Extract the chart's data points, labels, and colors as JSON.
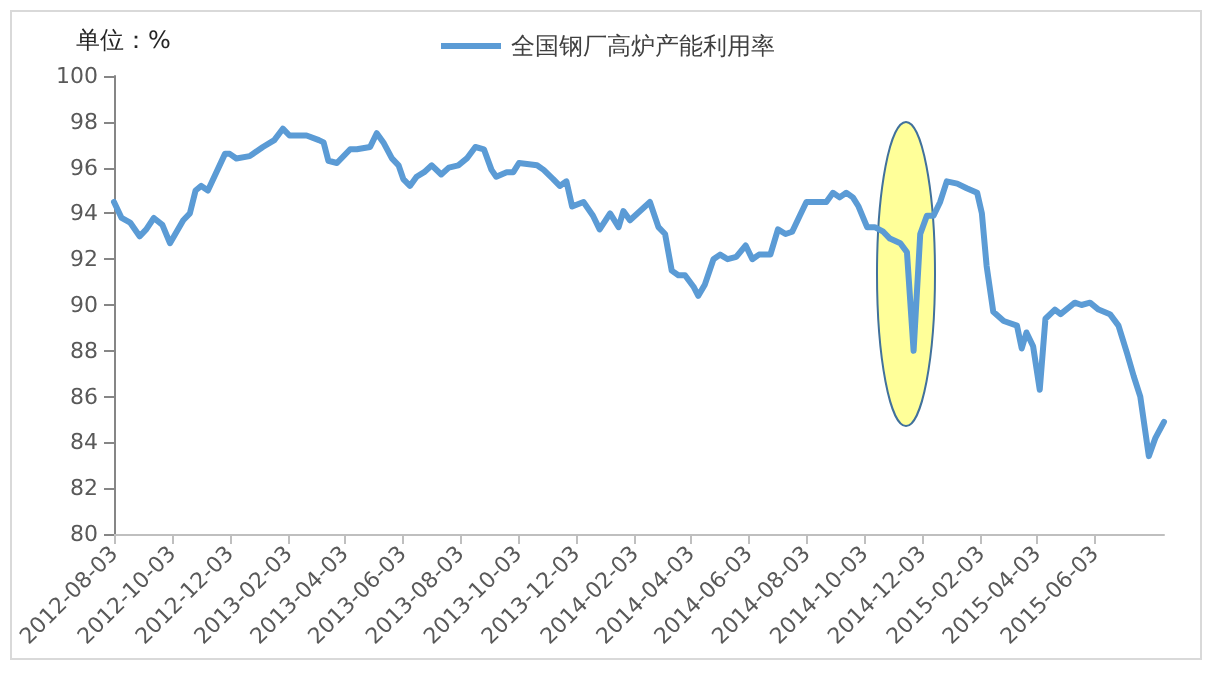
{
  "chart_data": {
    "type": "line",
    "ylabel": "单位：%",
    "legend": "top",
    "grid": false,
    "marker": "none",
    "line_style": "solid",
    "xlim": [
      "2012-08-03",
      "2015-08-15"
    ],
    "ylim": [
      80,
      100
    ],
    "yticks": [
      80,
      82,
      84,
      86,
      88,
      90,
      92,
      94,
      96,
      98,
      100
    ],
    "xticks": [
      "2012-08-03",
      "2012-10-03",
      "2012-12-03",
      "2013-02-03",
      "2013-04-03",
      "2013-06-03",
      "2013-08-03",
      "2013-10-03",
      "2013-12-03",
      "2014-02-03",
      "2014-04-03",
      "2014-06-03",
      "2014-08-03",
      "2014-10-03",
      "2014-12-03",
      "2015-02-03",
      "2015-04-03",
      "2015-06-03"
    ],
    "series": [
      {
        "name": "全国钢厂高炉产能利用率",
        "color": "#5b9bd5",
        "x": [
          "2012-08-03",
          "2012-08-11",
          "2012-08-20",
          "2012-08-30",
          "2012-09-06",
          "2012-09-14",
          "2012-09-23",
          "2012-10-01",
          "2012-10-15",
          "2012-10-22",
          "2012-10-28",
          "2012-11-03",
          "2012-11-10",
          "2012-11-28",
          "2012-12-03",
          "2012-12-10",
          "2012-12-24",
          "2013-01-07",
          "2013-01-19",
          "2013-01-28",
          "2013-02-04",
          "2013-02-22",
          "2013-03-07",
          "2013-03-12",
          "2013-03-17",
          "2013-03-26",
          "2013-04-09",
          "2013-04-16",
          "2013-04-30",
          "2013-05-07",
          "2013-05-14",
          "2013-05-23",
          "2013-05-30",
          "2013-06-04",
          "2013-06-11",
          "2013-06-18",
          "2013-06-26",
          "2013-07-04",
          "2013-07-14",
          "2013-07-22",
          "2013-08-01",
          "2013-08-10",
          "2013-08-19",
          "2013-08-28",
          "2013-09-05",
          "2013-09-10",
          "2013-09-21",
          "2013-09-28",
          "2013-10-04",
          "2013-10-23",
          "2013-10-30",
          "2013-11-09",
          "2013-11-16",
          "2013-11-23",
          "2013-11-29",
          "2013-12-11",
          "2013-12-21",
          "2013-12-28",
          "2014-01-08",
          "2014-01-17",
          "2014-01-22",
          "2014-01-29",
          "2014-02-19",
          "2014-02-28",
          "2014-03-07",
          "2014-03-14",
          "2014-03-21",
          "2014-03-28",
          "2014-04-06",
          "2014-04-11",
          "2014-04-18",
          "2014-04-27",
          "2014-05-04",
          "2014-05-12",
          "2014-05-21",
          "2014-05-31",
          "2014-06-07",
          "2014-06-14",
          "2014-06-26",
          "2014-07-04",
          "2014-07-12",
          "2014-07-19",
          "2014-07-27",
          "2014-08-03",
          "2014-08-17",
          "2014-08-24",
          "2014-08-31",
          "2014-09-07",
          "2014-09-14",
          "2014-09-21",
          "2014-09-27",
          "2014-10-06",
          "2014-10-14",
          "2014-10-23",
          "2014-10-30",
          "2014-11-10",
          "2014-11-17",
          "2014-11-24",
          "2014-12-01",
          "2014-12-08",
          "2014-12-15",
          "2014-12-22",
          "2014-12-29",
          "2015-01-09",
          "2015-01-19",
          "2015-01-30",
          "2015-02-04",
          "2015-02-09",
          "2015-02-16",
          "2015-02-27",
          "2015-03-13",
          "2015-03-18",
          "2015-03-23",
          "2015-03-30",
          "2015-04-06",
          "2015-04-12",
          "2015-04-22",
          "2015-04-28",
          "2015-05-13",
          "2015-05-20",
          "2015-05-29",
          "2015-06-07",
          "2015-06-19",
          "2015-06-28",
          "2015-07-07",
          "2015-07-14",
          "2015-07-21",
          "2015-07-30",
          "2015-08-06",
          "2015-08-15"
        ],
        "values": [
          94.5,
          93.8,
          93.6,
          93.0,
          93.3,
          93.8,
          93.5,
          92.7,
          93.7,
          94.0,
          95.0,
          95.2,
          95.0,
          96.6,
          96.6,
          96.4,
          96.5,
          96.9,
          97.2,
          97.7,
          97.4,
          97.4,
          97.2,
          97.1,
          96.3,
          96.2,
          96.8,
          96.8,
          96.9,
          97.5,
          97.1,
          96.4,
          96.1,
          95.5,
          95.2,
          95.6,
          95.8,
          96.1,
          95.7,
          96.0,
          96.1,
          96.4,
          96.9,
          96.8,
          95.9,
          95.6,
          95.8,
          95.8,
          96.2,
          96.1,
          95.9,
          95.5,
          95.2,
          95.4,
          94.3,
          94.5,
          93.9,
          93.3,
          94.0,
          93.4,
          94.1,
          93.7,
          94.5,
          93.4,
          93.1,
          91.5,
          91.3,
          91.3,
          90.8,
          90.4,
          90.9,
          92.0,
          92.2,
          92.0,
          92.1,
          92.6,
          92.0,
          92.2,
          92.2,
          93.3,
          93.1,
          93.2,
          93.9,
          94.5,
          94.5,
          94.5,
          94.9,
          94.7,
          94.9,
          94.7,
          94.3,
          93.4,
          93.4,
          93.2,
          92.9,
          92.7,
          92.3,
          88.0,
          93.1,
          93.9,
          93.9,
          94.5,
          95.4,
          95.3,
          95.1,
          94.9,
          94.0,
          91.7,
          89.7,
          89.3,
          89.1,
          88.1,
          88.8,
          88.2,
          86.3,
          89.4,
          89.8,
          89.6,
          90.1,
          90.0,
          90.1,
          89.8,
          89.6,
          89.1,
          87.9,
          86.9,
          86.0,
          83.4,
          84.2,
          84.9
        ]
      }
    ]
  }
}
